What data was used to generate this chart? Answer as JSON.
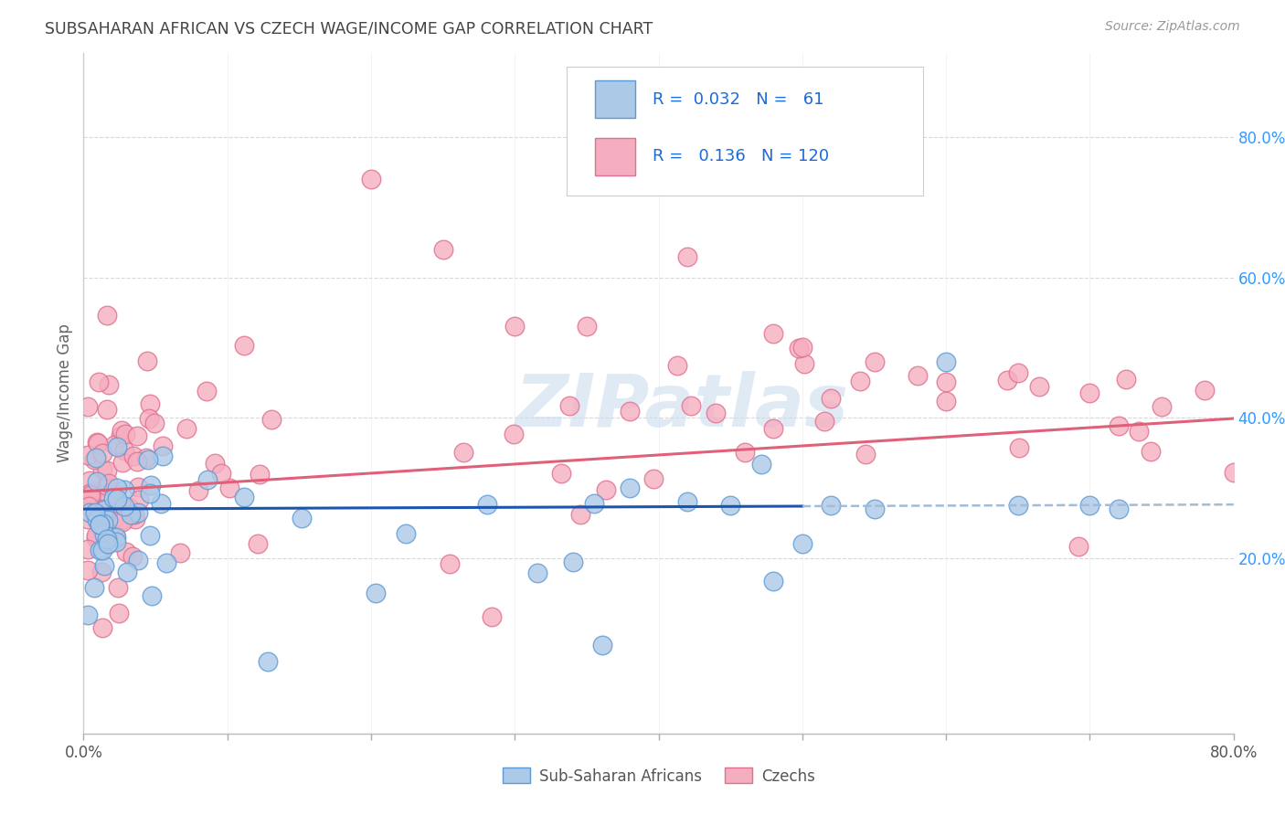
{
  "title": "SUBSAHARAN AFRICAN VS CZECH WAGE/INCOME GAP CORRELATION CHART",
  "source": "Source: ZipAtlas.com",
  "ylabel": "Wage/Income Gap",
  "xlim": [
    0.0,
    0.8
  ],
  "ylim": [
    -0.05,
    0.92
  ],
  "yticks": [
    0.2,
    0.4,
    0.6,
    0.8
  ],
  "ytick_labels": [
    "20.0%",
    "40.0%",
    "60.0%",
    "80.0%"
  ],
  "xtick_positions": [
    0.0,
    0.1,
    0.2,
    0.3,
    0.4,
    0.5,
    0.6,
    0.7,
    0.8
  ],
  "group1_label": "Sub-Saharan Africans",
  "group2_label": "Czechs",
  "group1_color": "#adc9e8",
  "group2_color": "#f5aec0",
  "group1_edge_color": "#5b9bd5",
  "group2_edge_color": "#e07090",
  "group1_R": "0.032",
  "group1_N": "61",
  "group2_R": "0.136",
  "group2_N": "120",
  "legend_R_color": "#1a6adb",
  "trend1_color": "#1a55b0",
  "trend2_color": "#e0607a",
  "trend1_dashed_color": "#a0bcd8",
  "background_color": "#ffffff",
  "grid_color": "#d8d8d8",
  "title_color": "#444444",
  "watermark_color": "#ccdded",
  "watermark_text": "ZIPatlas"
}
